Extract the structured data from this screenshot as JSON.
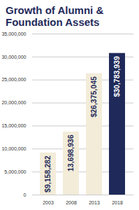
{
  "chart_data": {
    "type": "bar",
    "title": "Growth of Alumni & Foundation Assets",
    "categories": [
      "2003",
      "2008",
      "2013",
      "2018"
    ],
    "values": [
      9158282,
      13698936,
      26375045,
      30783939
    ],
    "value_labels": [
      "$9,158,282",
      "13,698,936",
      "$26,375,045",
      "$30,783,939"
    ],
    "colors": [
      "#f2ecd9",
      "#f2ecd9",
      "#f2ecd9",
      "#1f2a5a"
    ],
    "ylim": [
      0,
      35000000
    ],
    "yticks": [
      0,
      {
        "value": 5000000,
        "label": "5,000,000"
      },
      {
        "value": 10000000,
        "label": "10,000,000"
      },
      {
        "value": 15000000,
        "label": "15,000,000"
      },
      {
        "value": 20000000,
        "label": "20,000,000"
      },
      {
        "value": 25000000,
        "label": "25,000,000"
      },
      {
        "value": 30000000,
        "label": "30,000,000"
      },
      {
        "value": 35000000,
        "label": "35,000,000"
      }
    ],
    "grid": true,
    "data_labels": true
  }
}
